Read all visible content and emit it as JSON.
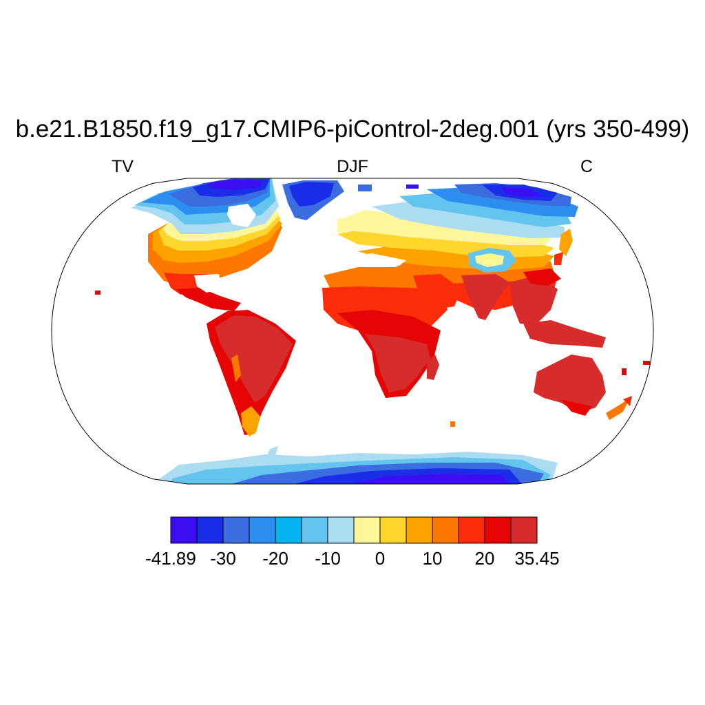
{
  "figure": {
    "title": "b.e21.B1850.f19_g17.CMIP6-piControl-2deg.001 (yrs 350-499)",
    "left_label": "TV",
    "center_label": "DJF",
    "right_label": "C",
    "projection": "robinson",
    "colorbar": {
      "colors": [
        "#3c0ff2",
        "#1a2ee8",
        "#3b6de0",
        "#2b8ef0",
        "#06b4f2",
        "#63c4ee",
        "#acdcf1",
        "#fff59b",
        "#ffd62e",
        "#fca300",
        "#fc7800",
        "#fa2c0a",
        "#e60505",
        "#d62c2c"
      ],
      "tick_labels": [
        {
          "label": "-41.89",
          "boundary": 0
        },
        {
          "label": "-30",
          "boundary": 2
        },
        {
          "label": "-20",
          "boundary": 4
        },
        {
          "label": "-10",
          "boundary": 6
        },
        {
          "label": "0",
          "boundary": 8
        },
        {
          "label": "10",
          "boundary": 10
        },
        {
          "label": "20",
          "boundary": 12
        },
        {
          "label": "35.45",
          "boundary": 14
        }
      ]
    }
  }
}
